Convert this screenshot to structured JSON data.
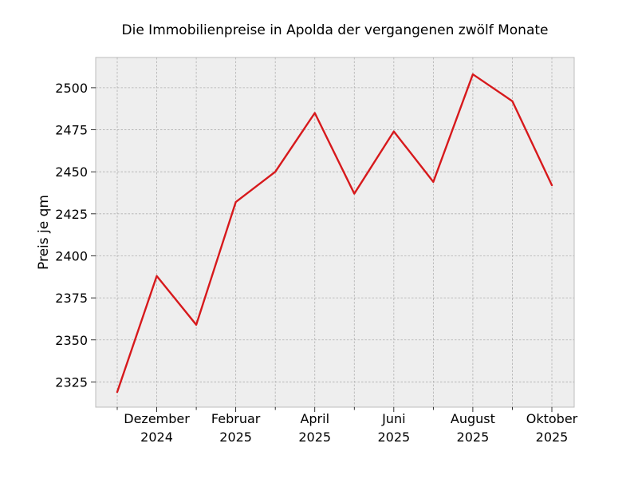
{
  "chart_data": {
    "type": "line",
    "title": "Die Immobilienpreise in Apolda der vergangenen zwölf Monate",
    "xlabel": "",
    "ylabel": "Preis je qm",
    "x": [
      "2024-11",
      "2024-12",
      "2025-01",
      "2025-02",
      "2025-03",
      "2025-04",
      "2025-05",
      "2025-06",
      "2025-07",
      "2025-08",
      "2025-09",
      "2025-10"
    ],
    "series": [
      {
        "values": [
          2319,
          2388,
          2359,
          2432,
          2450,
          2485,
          2437,
          2474,
          2444,
          2508,
          2492,
          2442
        ]
      }
    ],
    "ylim": [
      2310,
      2518
    ],
    "yticks": [
      2325,
      2350,
      2375,
      2400,
      2425,
      2450,
      2475,
      2500
    ],
    "xtick_labels": [
      {
        "month": "Dezember",
        "year": "2024"
      },
      {
        "month": "Februar",
        "year": "2025"
      },
      {
        "month": "April",
        "year": "2025"
      },
      {
        "month": "Juni",
        "year": "2025"
      },
      {
        "month": "August",
        "year": "2025"
      },
      {
        "month": "Oktober",
        "year": "2025"
      }
    ],
    "xtick_label_indices": [
      1,
      3,
      5,
      7,
      9,
      11
    ],
    "grid": true,
    "line_color": "#d7191c",
    "background_color": "#eeeeee"
  }
}
